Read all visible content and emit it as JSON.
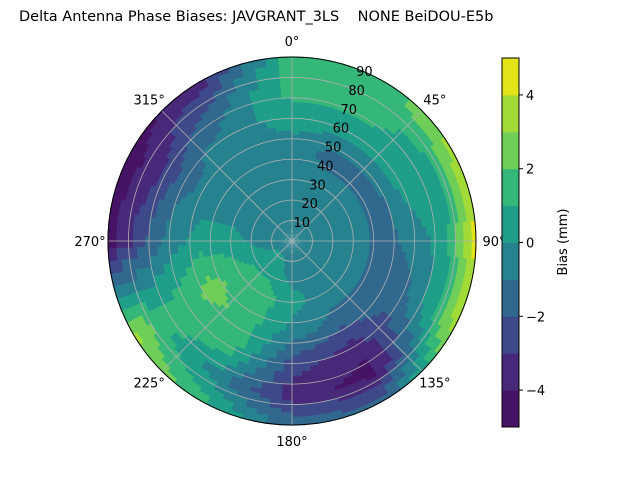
{
  "chart_data": {
    "type": "heatmap",
    "subtype": "polar-filled-contour",
    "title": "Delta Antenna Phase Biases: JAVGRANT_3LS    NONE BeiDOU-E5b",
    "theta_zero": "top",
    "theta_direction": "clockwise",
    "theta_ticks": [
      "0°",
      "45°",
      "90°",
      "135°",
      "180°",
      "225°",
      "270°",
      "315°"
    ],
    "r_ticks": [
      "10",
      "20",
      "30",
      "40",
      "50",
      "60",
      "70",
      "80",
      "90"
    ],
    "r_range": [
      0,
      90
    ],
    "grid": true,
    "colormap": "viridis",
    "levels": [
      -5,
      -4,
      -3,
      -2,
      -1,
      0,
      1,
      2,
      3,
      4,
      5
    ],
    "level_colors": [
      "#471365",
      "#482878",
      "#3e4989",
      "#31688e",
      "#26828e",
      "#1f9e89",
      "#35b779",
      "#6ece58",
      "#a2da37",
      "#e2e418"
    ],
    "colorbar": {
      "label": "Bias (mm)",
      "ticks": [
        "−4",
        "−2",
        "0",
        "2",
        "4"
      ],
      "tick_values": [
        -4,
        -2,
        0,
        2,
        4
      ],
      "range": [
        -5,
        5
      ]
    },
    "azimuth": [
      0,
      30,
      60,
      90,
      120,
      150,
      180,
      210,
      240,
      270,
      300,
      330
    ],
    "zenith": [
      0,
      15,
      30,
      45,
      60,
      75,
      90
    ],
    "bias": [
      [
        -0.5,
        -0.5,
        -0.5,
        -0.5,
        0.5,
        1.5,
        1.5
      ],
      [
        -0.5,
        -0.5,
        -0.5,
        -1.5,
        0.5,
        1.5,
        1.5
      ],
      [
        -0.5,
        -0.5,
        -0.5,
        -1.5,
        0.5,
        0.5,
        3.5
      ],
      [
        -0.5,
        -0.5,
        -0.5,
        -1.5,
        -0.5,
        0.5,
        4.5
      ],
      [
        -0.5,
        -0.5,
        -0.5,
        -1.5,
        -1.5,
        0.5,
        3.5
      ],
      [
        -0.5,
        -0.5,
        -0.5,
        -1.5,
        -3.5,
        -4.5,
        -1.5
      ],
      [
        -0.5,
        -0.5,
        0.5,
        -0.5,
        -2.5,
        -3.5,
        -1.5
      ],
      [
        -0.5,
        0.5,
        1.5,
        1.5,
        1.5,
        -0.5,
        1.5
      ],
      [
        -0.5,
        0.5,
        1.5,
        2.5,
        1.5,
        1.5,
        3.5
      ],
      [
        -0.5,
        -0.5,
        0.5,
        0.5,
        -0.5,
        -2.5,
        -4.5
      ],
      [
        -0.5,
        -0.5,
        -0.5,
        -0.5,
        -1.5,
        -3.5,
        -4.5
      ],
      [
        -0.5,
        -0.5,
        -0.5,
        -0.5,
        -0.5,
        -1.5,
        -3.5
      ]
    ]
  }
}
